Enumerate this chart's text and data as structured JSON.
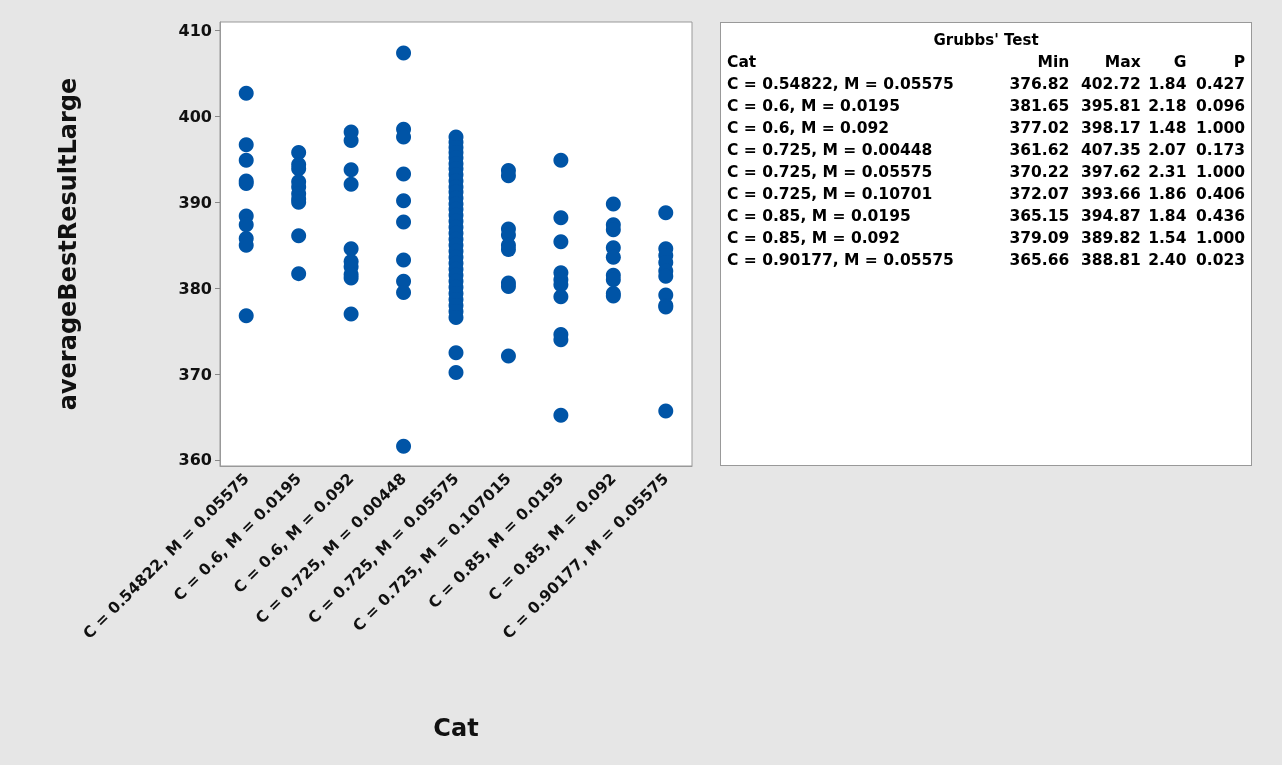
{
  "chart_data": [
    {
      "type": "scatter",
      "xlabel": "Cat",
      "ylabel": "averageBestResultLarge",
      "categories": [
        "C = 0.54822, M = 0.05575",
        "C = 0.6, M = 0.0195",
        "C = 0.6, M = 0.092",
        "C = 0.725, M = 0.00448",
        "C = 0.725, M = 0.05575",
        "C = 0.725, M = 0.107015",
        "C = 0.85, M = 0.0195",
        "C = 0.85, M = 0.092",
        "C = 0.90177, M = 0.05575"
      ],
      "series": [
        {
          "color": "#0054a6",
          "x": [
            "C = 0.54822, M = 0.05575",
            "C = 0.54822, M = 0.05575",
            "C = 0.54822, M = 0.05575",
            "C = 0.54822, M = 0.05575",
            "C = 0.54822, M = 0.05575",
            "C = 0.54822, M = 0.05575",
            "C = 0.54822, M = 0.05575",
            "C = 0.54822, M = 0.05575",
            "C = 0.54822, M = 0.05575",
            "C = 0.54822, M = 0.05575",
            "C = 0.6, M = 0.0195",
            "C = 0.6, M = 0.0195",
            "C = 0.6, M = 0.0195",
            "C = 0.6, M = 0.0195",
            "C = 0.6, M = 0.0195",
            "C = 0.6, M = 0.0195",
            "C = 0.6, M = 0.0195",
            "C = 0.6, M = 0.0195",
            "C = 0.6, M = 0.0195",
            "C = 0.6, M = 0.0195",
            "C = 0.6, M = 0.092",
            "C = 0.6, M = 0.092",
            "C = 0.6, M = 0.092",
            "C = 0.6, M = 0.092",
            "C = 0.6, M = 0.092",
            "C = 0.6, M = 0.092",
            "C = 0.6, M = 0.092",
            "C = 0.6, M = 0.092",
            "C = 0.6, M = 0.092",
            "C = 0.6, M = 0.092",
            "C = 0.725, M = 0.00448",
            "C = 0.725, M = 0.00448",
            "C = 0.725, M = 0.00448",
            "C = 0.725, M = 0.00448",
            "C = 0.725, M = 0.00448",
            "C = 0.725, M = 0.00448",
            "C = 0.725, M = 0.00448",
            "C = 0.725, M = 0.00448",
            "C = 0.725, M = 0.00448",
            "C = 0.725, M = 0.00448",
            "C = 0.725, M = 0.05575",
            "C = 0.725, M = 0.05575",
            "C = 0.725, M = 0.05575",
            "C = 0.725, M = 0.05575",
            "C = 0.725, M = 0.05575",
            "C = 0.725, M = 0.05575",
            "C = 0.725, M = 0.05575",
            "C = 0.725, M = 0.05575",
            "C = 0.725, M = 0.05575",
            "C = 0.725, M = 0.05575",
            "C = 0.725, M = 0.05575",
            "C = 0.725, M = 0.05575",
            "C = 0.725, M = 0.05575",
            "C = 0.725, M = 0.05575",
            "C = 0.725, M = 0.05575",
            "C = 0.725, M = 0.05575",
            "C = 0.725, M = 0.05575",
            "C = 0.725, M = 0.05575",
            "C = 0.725, M = 0.05575",
            "C = 0.725, M = 0.05575",
            "C = 0.725, M = 0.05575",
            "C = 0.725, M = 0.05575",
            "C = 0.725, M = 0.05575",
            "C = 0.725, M = 0.05575",
            "C = 0.725, M = 0.05575",
            "C = 0.725, M = 0.05575",
            "C = 0.725, M = 0.05575",
            "C = 0.725, M = 0.05575",
            "C = 0.725, M = 0.05575",
            "C = 0.725, M = 0.05575",
            "C = 0.725, M = 0.05575",
            "C = 0.725, M = 0.05575",
            "C = 0.725, M = 0.05575",
            "C = 0.725, M = 0.05575",
            "C = 0.725, M = 0.107015",
            "C = 0.725, M = 0.107015",
            "C = 0.725, M = 0.107015",
            "C = 0.725, M = 0.107015",
            "C = 0.725, M = 0.107015",
            "C = 0.725, M = 0.107015",
            "C = 0.725, M = 0.107015",
            "C = 0.725, M = 0.107015",
            "C = 0.725, M = 0.107015",
            "C = 0.85, M = 0.0195",
            "C = 0.85, M = 0.0195",
            "C = 0.85, M = 0.0195",
            "C = 0.85, M = 0.0195",
            "C = 0.85, M = 0.0195",
            "C = 0.85, M = 0.0195",
            "C = 0.85, M = 0.0195",
            "C = 0.85, M = 0.0195",
            "C = 0.85, M = 0.0195",
            "C = 0.85, M = 0.0195",
            "C = 0.85, M = 0.092",
            "C = 0.85, M = 0.092",
            "C = 0.85, M = 0.092",
            "C = 0.85, M = 0.092",
            "C = 0.85, M = 0.092",
            "C = 0.85, M = 0.092",
            "C = 0.85, M = 0.092",
            "C = 0.85, M = 0.092",
            "C = 0.85, M = 0.092",
            "C = 0.90177, M = 0.05575",
            "C = 0.90177, M = 0.05575",
            "C = 0.90177, M = 0.05575",
            "C = 0.90177, M = 0.05575",
            "C = 0.90177, M = 0.05575",
            "C = 0.90177, M = 0.05575",
            "C = 0.90177, M = 0.05575",
            "C = 0.90177, M = 0.05575",
            "C = 0.90177, M = 0.05575",
            "C = 0.90177, M = 0.05575"
          ],
          "values": [
            402.7,
            396.7,
            394.9,
            392.5,
            392.2,
            388.4,
            387.4,
            385.8,
            385.0,
            376.8,
            395.8,
            394.4,
            393.9,
            392.4,
            391.8,
            391.0,
            390.4,
            390.0,
            386.1,
            381.7,
            398.2,
            397.2,
            393.8,
            392.1,
            384.6,
            383.1,
            382.5,
            381.6,
            381.2,
            377.0,
            407.4,
            398.5,
            397.6,
            393.3,
            390.2,
            387.7,
            383.3,
            380.8,
            379.5,
            361.6,
            397.6,
            397.0,
            396.4,
            395.8,
            395.2,
            394.5,
            393.9,
            393.2,
            392.5,
            391.8,
            391.2,
            390.5,
            389.8,
            389.2,
            388.5,
            387.8,
            387.1,
            386.4,
            385.7,
            385.0,
            384.3,
            383.6,
            382.9,
            382.2,
            381.5,
            380.8,
            380.1,
            379.4,
            378.7,
            378.0,
            377.3,
            376.6,
            372.5,
            370.2,
            393.7,
            393.1,
            386.9,
            386.2,
            385.0,
            384.5,
            380.6,
            380.2,
            372.1,
            394.9,
            388.2,
            385.4,
            381.8,
            381.0,
            380.4,
            379.0,
            374.6,
            374.0,
            365.2,
            389.8,
            387.4,
            386.8,
            384.7,
            383.6,
            381.5,
            381.0,
            379.4,
            379.1,
            388.8,
            384.6,
            383.8,
            383.0,
            382.0,
            381.4,
            379.2,
            378.0,
            377.8,
            365.7
          ]
        }
      ],
      "ylim": [
        359.3,
        411.0
      ],
      "yticks": [
        360,
        370,
        380,
        390,
        400,
        410
      ],
      "grid": false,
      "marker": "circle"
    },
    {
      "type": "other",
      "title": "Grubbs' Test",
      "annotations": [
        "Cat",
        "Min",
        "Max",
        "G",
        "P",
        "C = 0.54822, M = 0.05575",
        "376.82",
        "402.72",
        "1.84",
        "0.427",
        "C = 0.6, M = 0.0195",
        "381.65",
        "395.81",
        "2.18",
        "0.096",
        "C = 0.6, M = 0.092",
        "377.02",
        "398.17",
        "1.48",
        "1.000",
        "C = 0.725, M = 0.00448",
        "361.62",
        "407.35",
        "2.07",
        "0.173",
        "C = 0.725, M = 0.05575",
        "370.22",
        "397.62",
        "2.31",
        "1.000",
        "C = 0.725, M = 0.10701",
        "372.07",
        "393.66",
        "1.86",
        "0.406",
        "C = 0.85, M = 0.0195",
        "365.15",
        "394.87",
        "1.84",
        "0.436",
        "C = 0.85, M = 0.092",
        "379.09",
        "389.82",
        "1.54",
        "1.000",
        "C = 0.90177, M = 0.05575",
        "365.66",
        "388.81",
        "2.40",
        "0.023"
      ]
    }
  ]
}
